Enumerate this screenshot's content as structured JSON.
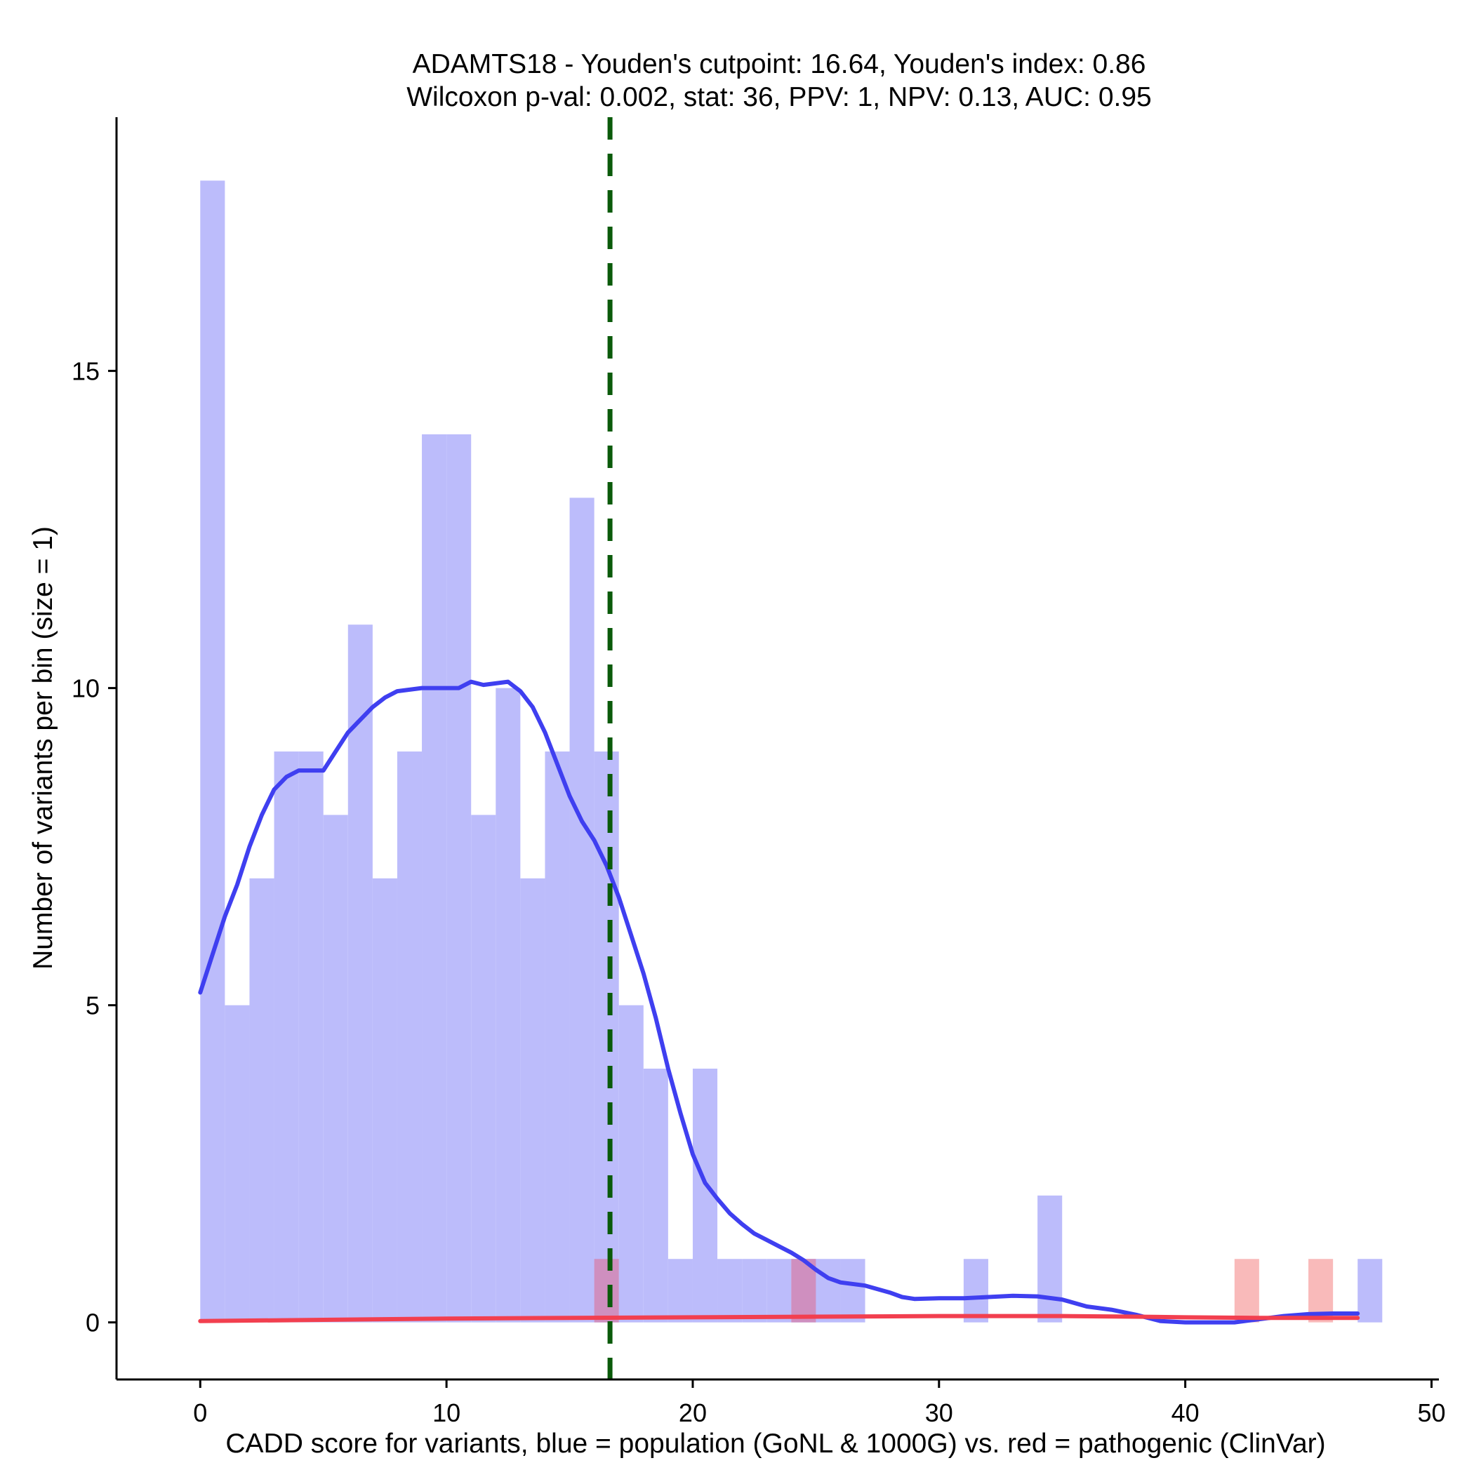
{
  "chart_data": {
    "type": "bar",
    "title_line1": "ADAMTS18 - Youden's cutpoint: 16.64, Youden's index: 0.86",
    "title_line2": "Wilcoxon p-val: 0.002, stat: 36, PPV: 1, NPV: 0.13, AUC: 0.95",
    "xlabel": "CADD score for variants, blue = population (GoNL & 1000G) vs. red = pathogenic (ClinVar)",
    "ylabel": "Number of variants per bin (size = 1)",
    "xlim": [
      -3.4,
      50.3
    ],
    "ylim": [
      -0.9,
      19.0
    ],
    "x_ticks": [
      0,
      10,
      20,
      30,
      40,
      50
    ],
    "y_ticks": [
      0,
      5,
      10,
      15
    ],
    "bin_size": 1,
    "cutpoint": 16.64,
    "grid": false,
    "colors": {
      "population_bars": "#bcbcfb",
      "pathogenic_bars": "#f9baba",
      "overlap_bars": "#cf8fbf",
      "population_curve": "#3f3ff0",
      "pathogenic_curve": "#f23f4f",
      "cutpoint_line": "#0a5a0a"
    },
    "series": [
      {
        "key": "population",
        "bins": [
          [
            0,
            18
          ],
          [
            1,
            5
          ],
          [
            2,
            7
          ],
          [
            3,
            9
          ],
          [
            4,
            9
          ],
          [
            5,
            8
          ],
          [
            6,
            11
          ],
          [
            7,
            7
          ],
          [
            8,
            9
          ],
          [
            9,
            14
          ],
          [
            10,
            14
          ],
          [
            11,
            8
          ],
          [
            12,
            10
          ],
          [
            13,
            7
          ],
          [
            14,
            9
          ],
          [
            15,
            13
          ],
          [
            16,
            9
          ],
          [
            17,
            5
          ],
          [
            18,
            4
          ],
          [
            19,
            1
          ],
          [
            20,
            4
          ],
          [
            21,
            1
          ],
          [
            22,
            1
          ],
          [
            23,
            1
          ],
          [
            24,
            1
          ],
          [
            25,
            1
          ],
          [
            26,
            1
          ],
          [
            31,
            1
          ],
          [
            34,
            2
          ],
          [
            47,
            1
          ]
        ]
      },
      {
        "key": "pathogenic",
        "bins": [
          [
            16,
            1
          ],
          [
            24,
            1
          ],
          [
            42,
            1
          ],
          [
            45,
            1
          ]
        ]
      }
    ],
    "curves": {
      "population": [
        [
          0,
          5.2
        ],
        [
          0.5,
          5.8
        ],
        [
          1,
          6.4
        ],
        [
          1.5,
          6.9
        ],
        [
          2,
          7.5
        ],
        [
          2.5,
          8.0
        ],
        [
          3,
          8.4
        ],
        [
          3.5,
          8.6
        ],
        [
          4,
          8.7
        ],
        [
          5,
          8.7
        ],
        [
          5.5,
          9.0
        ],
        [
          6,
          9.3
        ],
        [
          6.5,
          9.5
        ],
        [
          7,
          9.7
        ],
        [
          7.5,
          9.85
        ],
        [
          8,
          9.95
        ],
        [
          9,
          10.0
        ],
        [
          10,
          10.0
        ],
        [
          10.5,
          10.0
        ],
        [
          11,
          10.1
        ],
        [
          11.5,
          10.05
        ],
        [
          12.5,
          10.1
        ],
        [
          13,
          9.95
        ],
        [
          13.5,
          9.7
        ],
        [
          14,
          9.3
        ],
        [
          14.5,
          8.8
        ],
        [
          15,
          8.3
        ],
        [
          15.5,
          7.9
        ],
        [
          16,
          7.6
        ],
        [
          16.5,
          7.2
        ],
        [
          17,
          6.7
        ],
        [
          17.5,
          6.1
        ],
        [
          18,
          5.5
        ],
        [
          18.5,
          4.8
        ],
        [
          19,
          4.0
        ],
        [
          19.5,
          3.3
        ],
        [
          20,
          2.65
        ],
        [
          20.5,
          2.2
        ],
        [
          21,
          1.95
        ],
        [
          21.5,
          1.72
        ],
        [
          22,
          1.55
        ],
        [
          22.5,
          1.4
        ],
        [
          23,
          1.3
        ],
        [
          23.5,
          1.2
        ],
        [
          24,
          1.1
        ],
        [
          24.5,
          0.98
        ],
        [
          25,
          0.83
        ],
        [
          25.5,
          0.7
        ],
        [
          26,
          0.63
        ],
        [
          27,
          0.58
        ],
        [
          28,
          0.47
        ],
        [
          28.5,
          0.4
        ],
        [
          29,
          0.37
        ],
        [
          30,
          0.38
        ],
        [
          31,
          0.38
        ],
        [
          32,
          0.4
        ],
        [
          33,
          0.42
        ],
        [
          34,
          0.41
        ],
        [
          35,
          0.36
        ],
        [
          36,
          0.25
        ],
        [
          37,
          0.2
        ],
        [
          38,
          0.12
        ],
        [
          39,
          0.02
        ],
        [
          40,
          0.0
        ],
        [
          41,
          0.0
        ],
        [
          42,
          0.0
        ],
        [
          43,
          0.05
        ],
        [
          44,
          0.1
        ],
        [
          45,
          0.13
        ],
        [
          46,
          0.14
        ],
        [
          47,
          0.14
        ]
      ],
      "pathogenic": [
        [
          0,
          0.02
        ],
        [
          5,
          0.04
        ],
        [
          10,
          0.06
        ],
        [
          15,
          0.07
        ],
        [
          20,
          0.08
        ],
        [
          25,
          0.09
        ],
        [
          30,
          0.1
        ],
        [
          35,
          0.1
        ],
        [
          38,
          0.09
        ],
        [
          40,
          0.08
        ],
        [
          43,
          0.07
        ],
        [
          47,
          0.07
        ]
      ]
    }
  }
}
